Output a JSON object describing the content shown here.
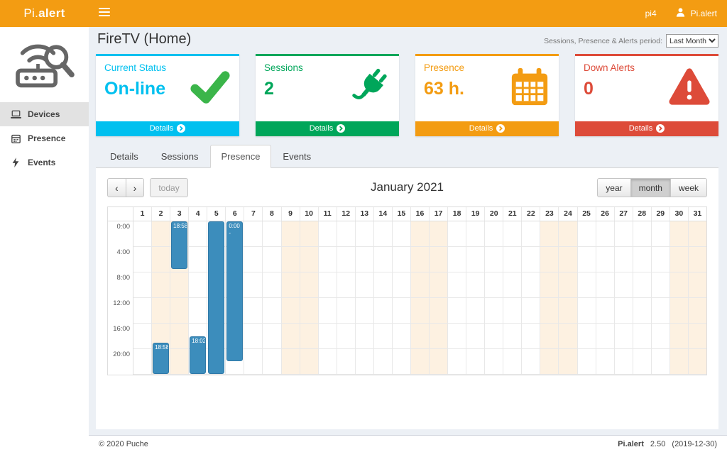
{
  "theme": {
    "topbar": "#f39c12",
    "event": "#3c8dbc",
    "weekend": "#fdf1e1"
  },
  "topbar": {
    "brand_pi": "Pi.",
    "brand_alert": "alert",
    "host": "pi4",
    "user": "Pi.alert"
  },
  "sidebar": {
    "items": [
      {
        "label": "Devices",
        "icon": "devices-icon",
        "active": true
      },
      {
        "label": "Presence",
        "icon": "presence-icon",
        "active": false
      },
      {
        "label": "Events",
        "icon": "events-icon",
        "active": false
      }
    ]
  },
  "header": {
    "title": "FireTV (Home)",
    "period_label": "Sessions, Presence & Alerts period:",
    "period_value": "Last Month"
  },
  "cards": [
    {
      "title": "Current Status",
      "value": "On-line",
      "details_label": "Details",
      "color": "#00c0ef",
      "icon": "check-icon"
    },
    {
      "title": "Sessions",
      "value": "2",
      "details_label": "Details",
      "color": "#00a65a",
      "icon": "plug-icon"
    },
    {
      "title": "Presence",
      "value": "63 h.",
      "details_label": "Details",
      "color": "#f39c12",
      "icon": "calendar-icon"
    },
    {
      "title": "Down Alerts",
      "value": "0",
      "details_label": "Details",
      "color": "#dd4b39",
      "icon": "warning-icon"
    }
  ],
  "tabs": [
    {
      "label": "Details",
      "active": false
    },
    {
      "label": "Sessions",
      "active": false
    },
    {
      "label": "Presence",
      "active": true
    },
    {
      "label": "Events",
      "active": false
    }
  ],
  "calendar": {
    "prev_glyph": "‹",
    "next_glyph": "›",
    "today_label": "today",
    "title": "January 2021",
    "views": [
      {
        "label": "year",
        "active": false
      },
      {
        "label": "month",
        "active": true
      },
      {
        "label": "week",
        "active": false
      }
    ],
    "days": 31,
    "weekend_days": [
      2,
      3,
      9,
      10,
      16,
      17,
      23,
      24,
      30,
      31
    ],
    "time_labels": [
      "0:00",
      "4:00",
      "8:00",
      "12:00",
      "16:00",
      "20:00"
    ],
    "events": [
      {
        "day": 2,
        "start": 18.97,
        "end": 24,
        "label": "18:58"
      },
      {
        "day": 3,
        "start": 0,
        "end": 7.6,
        "label": "18:58"
      },
      {
        "day": 4,
        "start": 18.03,
        "end": 24,
        "label": "18:02"
      },
      {
        "day": 5,
        "start": 0,
        "end": 24,
        "label": ""
      },
      {
        "day": 6,
        "start": 0,
        "end": 22,
        "label": "0:00 -"
      }
    ]
  },
  "footer": {
    "copyright": "© 2020 Puche",
    "app_name": "Pi.alert",
    "version": "2.50",
    "build_date": "(2019-12-30)"
  }
}
